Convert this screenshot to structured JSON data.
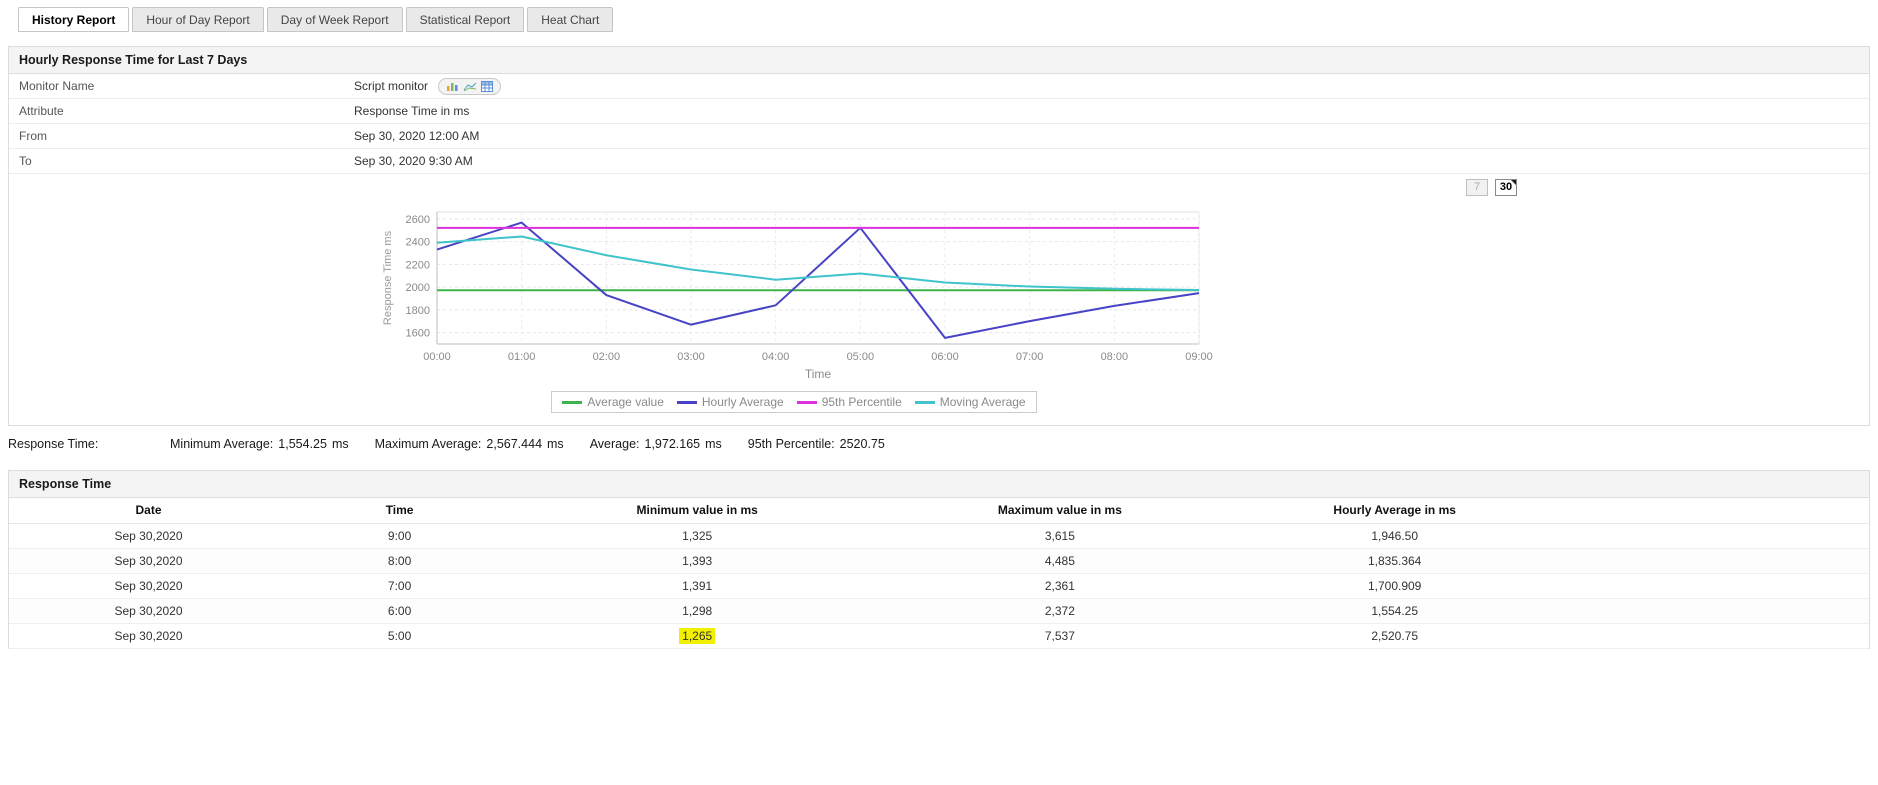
{
  "tabs": [
    {
      "label": "History Report",
      "active": true
    },
    {
      "label": "Hour of Day Report",
      "active": false
    },
    {
      "label": "Day of Week Report",
      "active": false
    },
    {
      "label": "Statistical Report",
      "active": false
    },
    {
      "label": "Heat Chart",
      "active": false
    }
  ],
  "report_panel": {
    "title": "Hourly Response Time for Last 7 Days",
    "info_rows": [
      {
        "label": "Monitor Name",
        "value": "Script monitor",
        "icons": [
          "bar-chart-icon",
          "line-chart-icon",
          "table-icon"
        ]
      },
      {
        "label": "Attribute",
        "value": "Response Time in ms",
        "icons": []
      },
      {
        "label": "From",
        "value": "Sep 30, 2020 12:00 AM",
        "icons": []
      },
      {
        "label": "To",
        "value": "Sep 30, 2020 9:30 AM",
        "icons": []
      }
    ],
    "period_buttons": [
      {
        "label": "7",
        "state": "disabled"
      },
      {
        "label": "30",
        "state": "active"
      }
    ]
  },
  "chart_data": {
    "type": "line",
    "x": [
      "00:00",
      "01:00",
      "02:00",
      "03:00",
      "04:00",
      "05:00",
      "06:00",
      "07:00",
      "08:00",
      "09:00"
    ],
    "series": [
      {
        "name": "Average value",
        "color": "#3cb44a",
        "values": [
          1972,
          1972,
          1972,
          1972,
          1972,
          1972,
          1972,
          1972,
          1972,
          1972
        ]
      },
      {
        "name": "Hourly Average",
        "color": "#4843c6",
        "values": [
          2330,
          2567,
          1930,
          1670,
          1840,
          2521,
          1554,
          1701,
          1835,
          1947
        ]
      },
      {
        "name": "95th Percentile",
        "color": "#de31de",
        "values": [
          2521,
          2521,
          2521,
          2521,
          2521,
          2521,
          2521,
          2521,
          2521,
          2521
        ]
      },
      {
        "name": "Moving Average",
        "color": "#40c3cb",
        "values": [
          2390,
          2445,
          2280,
          2155,
          2065,
          2120,
          2040,
          2005,
          1985,
          1975
        ]
      }
    ],
    "title": "",
    "xlabel": "Time",
    "ylabel": "Response Time ms",
    "ylim": [
      1500,
      2660
    ],
    "yticks": [
      1600,
      1800,
      2000,
      2200,
      2400,
      2600
    ],
    "grid": true,
    "legend_position": "bottom"
  },
  "summary": {
    "label": "Response Time:",
    "items": [
      {
        "label": "Minimum Average:",
        "value": "1,554.25",
        "unit": "ms"
      },
      {
        "label": "Maximum Average:",
        "value": "2,567.444",
        "unit": "ms"
      },
      {
        "label": "Average:",
        "value": "1,972.165",
        "unit": "ms"
      },
      {
        "label": "95th Percentile:",
        "value": "2520.75",
        "unit": ""
      }
    ]
  },
  "table_panel": {
    "title": "Response Time",
    "columns": [
      "Date",
      "Time",
      "Minimum value in ms",
      "Maximum value in ms",
      "Hourly Average in ms"
    ],
    "rows": [
      {
        "date": "Sep 30,2020",
        "time": "9:00",
        "min": "1,325",
        "max": "3,615",
        "avg": "1,946.50",
        "highlight_min": false
      },
      {
        "date": "Sep 30,2020",
        "time": "8:00",
        "min": "1,393",
        "max": "4,485",
        "avg": "1,835.364",
        "highlight_min": false
      },
      {
        "date": "Sep 30,2020",
        "time": "7:00",
        "min": "1,391",
        "max": "2,361",
        "avg": "1,700.909",
        "highlight_min": false
      },
      {
        "date": "Sep 30,2020",
        "time": "6:00",
        "min": "1,298",
        "max": "2,372",
        "avg": "1,554.25",
        "highlight_min": false
      },
      {
        "date": "Sep 30,2020",
        "time": "5:00",
        "min": "1,265",
        "max": "7,537",
        "avg": "2,520.75",
        "highlight_min": true
      }
    ],
    "highlight_color": "#f0f000"
  }
}
